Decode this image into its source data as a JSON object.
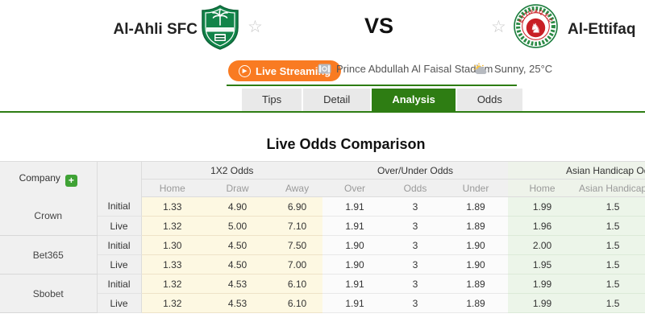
{
  "match": {
    "home_team": "Al-Ahli SFC",
    "away_team": "Al-Ettifaq",
    "away_logo_text": "ETTIFAQ F.C",
    "vs_label": "VS",
    "live_streaming_label": "Live Streaming",
    "stadium": "Prince Abdullah Al Faisal Stadium",
    "weather": "Sunny, 25°C"
  },
  "tabs": [
    {
      "label": "Tips",
      "active": false
    },
    {
      "label": "Detail",
      "active": false
    },
    {
      "label": "Analysis",
      "active": true
    },
    {
      "label": "Odds",
      "active": false
    }
  ],
  "analysis": {
    "title": "Live Odds Comparison"
  },
  "odds_table": {
    "company_header": "Company",
    "add_button_label": "+",
    "groups": {
      "x12": "1X2 Odds",
      "ou": "Over/Under Odds",
      "ah": "Asian Handicap Odds"
    },
    "subheaders": {
      "x12": [
        "Home",
        "Draw",
        "Away"
      ],
      "ou": [
        "Over",
        "Odds",
        "Under"
      ],
      "ah": [
        "Home",
        "Asian Handicap"
      ]
    },
    "rows": [
      {
        "company": "Crown",
        "lines": [
          {
            "type": "Initial",
            "x12": [
              "1.33",
              "4.90",
              "6.90"
            ],
            "ou": [
              "1.91",
              "3",
              "1.89"
            ],
            "ah": [
              "1.99",
              "1.5"
            ]
          },
          {
            "type": "Live",
            "x12": [
              "1.32",
              "5.00",
              "7.10"
            ],
            "ou": [
              "1.91",
              "3",
              "1.89"
            ],
            "ah": [
              "1.96",
              "1.5"
            ]
          }
        ]
      },
      {
        "company": "Bet365",
        "lines": [
          {
            "type": "Initial",
            "x12": [
              "1.30",
              "4.50",
              "7.50"
            ],
            "ou": [
              "1.90",
              "3",
              "1.90"
            ],
            "ah": [
              "2.00",
              "1.5"
            ]
          },
          {
            "type": "Live",
            "x12": [
              "1.33",
              "4.50",
              "7.00"
            ],
            "ou": [
              "1.90",
              "3",
              "1.90"
            ],
            "ah": [
              "1.95",
              "1.5"
            ]
          }
        ]
      },
      {
        "company": "Sbobet",
        "lines": [
          {
            "type": "Initial",
            "x12": [
              "1.32",
              "4.53",
              "6.10"
            ],
            "ou": [
              "1.91",
              "3",
              "1.89"
            ],
            "ah": [
              "1.99",
              "1.5"
            ]
          },
          {
            "type": "Live",
            "x12": [
              "1.32",
              "4.53",
              "6.10"
            ],
            "ou": [
              "1.91",
              "3",
              "1.89"
            ],
            "ah": [
              "1.99",
              "1.5"
            ]
          }
        ]
      }
    ]
  },
  "colors": {
    "accent_green": "#2e7d13",
    "bright_green": "#3fa235",
    "button_orange": "#f97b22",
    "x12_bg": "#fdf8e2",
    "ou_bg": "#fbfbfb",
    "ah_bg": "#ecf5e9",
    "header_bg": "#f0f0f0",
    "star_gray": "#c8c8c8"
  }
}
